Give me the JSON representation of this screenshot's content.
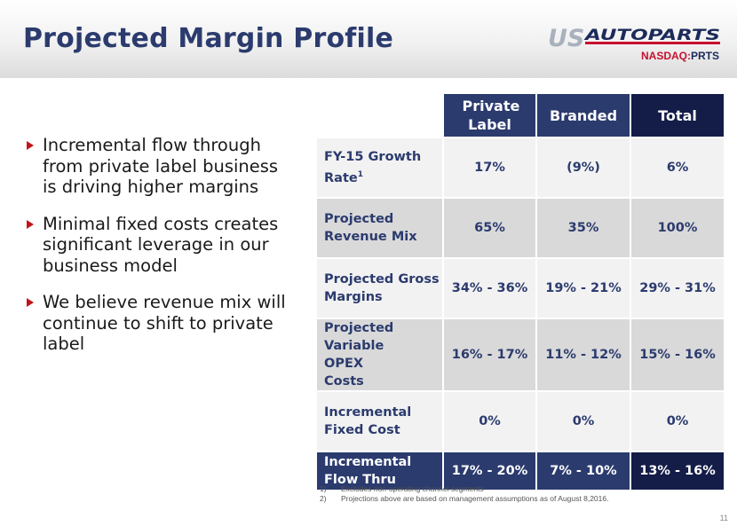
{
  "header": {
    "title": "Projected Margin Profile",
    "logo_text_us": "US",
    "logo_text_brand": "AUTOPARTS",
    "ticker_exchange": "NASDAQ:",
    "ticker_symbol": "PRTS"
  },
  "bullets": [
    "Incremental flow through from private label business is driving higher margins",
    "Minimal fixed costs creates significant leverage in our business model",
    "We believe revenue mix will continue to shift to private label"
  ],
  "table": {
    "headers": [
      "Private Label",
      "Branded",
      "Total"
    ],
    "rows": [
      {
        "label": "FY-15 Growth Rate",
        "sup": "1",
        "values": [
          "17%",
          "(9%)",
          "6%"
        ]
      },
      {
        "label": "Projected Revenue Mix",
        "values": [
          "65%",
          "35%",
          "100%"
        ]
      },
      {
        "label": "Projected Gross Margins",
        "values": [
          "34% - 36%",
          "19% - 21%",
          "29% - 31%"
        ]
      },
      {
        "label": "Projected Variable OPEX Costs",
        "values": [
          "16% - 17%",
          "11% - 12%",
          "15% - 16%"
        ]
      },
      {
        "label": "Incremental Fixed Cost",
        "values": [
          "0%",
          "0%",
          "0%"
        ]
      },
      {
        "label": "Incremental Flow Thru",
        "values": [
          "17% - 20%",
          "7% - 10%",
          "13% - 16%"
        ]
      }
    ]
  },
  "footnotes": [
    {
      "num": "1)",
      "text": "Excludes non-operating channel segments"
    },
    {
      "num": "2)",
      "text": "Projections above are based on management assumptions as of August 8,2016."
    }
  ],
  "page_number": "11",
  "colors": {
    "navy": "#2b3b6e",
    "dark_navy": "#141c48",
    "bullet_red": "#c0141c",
    "row_light": "#f2f2f2",
    "row_dark": "#d9d9d9"
  }
}
